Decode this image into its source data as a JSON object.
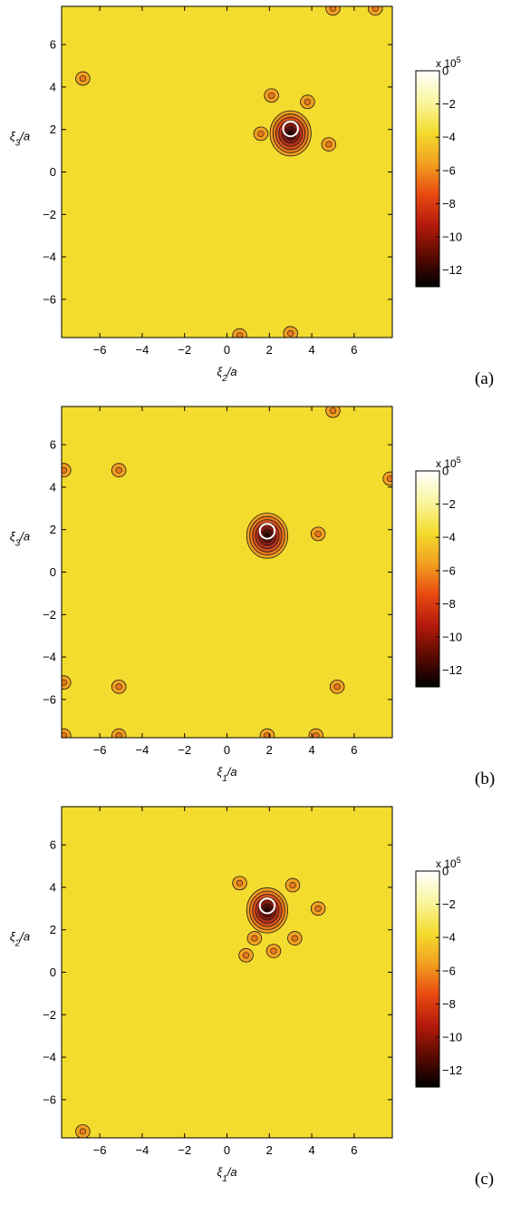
{
  "chart_data": [
    {
      "type": "heatmap",
      "panel_label": "(a)",
      "xlabel": "ξ2/a",
      "ylabel": "ξ3/a",
      "xlim": [
        -7.8,
        7.8
      ],
      "ylim": [
        -7.8,
        7.8
      ],
      "xticks": [
        "−6",
        "−4",
        "−2",
        "0",
        "2",
        "4",
        "6"
      ],
      "yticks": [
        "6",
        "4",
        "2",
        "0",
        "−2",
        "−4",
        "−6"
      ],
      "colorbar": {
        "exponent_label": "x 10",
        "exponent_power": "5",
        "range": [
          -13,
          0
        ],
        "ticks": [
          "0",
          "−2",
          "−4",
          "−6",
          "−8",
          "−10",
          "−12"
        ],
        "colormap": [
          "#000000",
          "#5a0a00",
          "#b41a0c",
          "#e84a10",
          "#f2a020",
          "#f4dc2e",
          "#fbf6a0",
          "#ffffff"
        ]
      },
      "background_value": -3.5,
      "features": [
        {
          "kind": "well",
          "x": 3.0,
          "y": 1.9,
          "min_value": -12.5,
          "note": "deep well with white circle marker at centre"
        },
        {
          "kind": "lobe",
          "x": 1.6,
          "y": 1.8,
          "value": -5
        },
        {
          "kind": "lobe",
          "x": 3.8,
          "y": 3.3,
          "value": -5
        },
        {
          "kind": "lobe",
          "x": 2.1,
          "y": 3.6,
          "value": -5
        },
        {
          "kind": "lobe",
          "x": 4.8,
          "y": 1.3,
          "value": -5
        },
        {
          "kind": "lobe",
          "x": -6.8,
          "y": 4.4,
          "value": -5
        },
        {
          "kind": "lobe",
          "x": 0.6,
          "y": -7.7,
          "value": -5
        },
        {
          "kind": "lobe",
          "x": 3.0,
          "y": -7.6,
          "value": -5
        },
        {
          "kind": "lobe",
          "x": 5.0,
          "y": 7.7,
          "value": -5
        },
        {
          "kind": "lobe",
          "x": 7.0,
          "y": 7.7,
          "value": -5
        }
      ]
    },
    {
      "type": "heatmap",
      "panel_label": "(b)",
      "xlabel": "ξ1/a",
      "ylabel": "ξ3/a",
      "xlim": [
        -7.8,
        7.8
      ],
      "ylim": [
        -7.8,
        7.8
      ],
      "xticks": [
        "−6",
        "−4",
        "−2",
        "0",
        "2",
        "4",
        "6"
      ],
      "yticks": [
        "6",
        "4",
        "2",
        "0",
        "−2",
        "−4",
        "−6"
      ],
      "colorbar": {
        "exponent_label": "x 10",
        "exponent_power": "5",
        "range": [
          -13,
          0
        ],
        "ticks": [
          "0",
          "−2",
          "−4",
          "−6",
          "−8",
          "−10",
          "−12"
        ],
        "colormap": [
          "#000000",
          "#5a0a00",
          "#b41a0c",
          "#e84a10",
          "#f2a020",
          "#f4dc2e",
          "#fbf6a0",
          "#ffffff"
        ]
      },
      "background_value": -3.5,
      "features": [
        {
          "kind": "well",
          "x": 1.9,
          "y": 1.8,
          "min_value": -12.5,
          "note": "deep well with white circle marker at centre"
        },
        {
          "kind": "lobe",
          "x": 4.3,
          "y": 1.8,
          "value": -5
        },
        {
          "kind": "lobe",
          "x": -5.1,
          "y": 4.8,
          "value": -5
        },
        {
          "kind": "lobe",
          "x": -7.7,
          "y": 4.8,
          "value": -5
        },
        {
          "kind": "lobe",
          "x": 7.7,
          "y": 4.4,
          "value": -5
        },
        {
          "kind": "lobe",
          "x": 5.0,
          "y": 7.6,
          "value": -5
        },
        {
          "kind": "lobe",
          "x": -5.1,
          "y": -5.4,
          "value": -5
        },
        {
          "kind": "lobe",
          "x": 5.2,
          "y": -5.4,
          "value": -5
        },
        {
          "kind": "lobe",
          "x": -7.7,
          "y": -5.2,
          "value": -5
        },
        {
          "kind": "lobe",
          "x": 1.9,
          "y": -7.7,
          "value": -5
        },
        {
          "kind": "lobe",
          "x": 4.2,
          "y": -7.7,
          "value": -5
        },
        {
          "kind": "lobe",
          "x": -7.7,
          "y": -7.7,
          "value": -5
        },
        {
          "kind": "lobe",
          "x": -5.1,
          "y": -7.7,
          "value": -5
        }
      ]
    },
    {
      "type": "heatmap",
      "panel_label": "(c)",
      "xlabel": "ξ1/a",
      "ylabel": "ξ2/a",
      "xlim": [
        -7.8,
        7.8
      ],
      "ylim": [
        -7.8,
        7.8
      ],
      "xticks": [
        "−6",
        "−4",
        "−2",
        "0",
        "2",
        "4",
        "6"
      ],
      "yticks": [
        "6",
        "4",
        "2",
        "0",
        "−2",
        "−4",
        "−6"
      ],
      "colorbar": {
        "exponent_label": "x 10",
        "exponent_power": "5",
        "range": [
          -13,
          0
        ],
        "ticks": [
          "0",
          "−2",
          "−4",
          "−6",
          "−8",
          "−10",
          "−12"
        ],
        "colormap": [
          "#000000",
          "#5a0a00",
          "#b41a0c",
          "#e84a10",
          "#f2a020",
          "#f4dc2e",
          "#fbf6a0",
          "#ffffff"
        ]
      },
      "background_value": -3.5,
      "features": [
        {
          "kind": "well",
          "x": 1.9,
          "y": 3.0,
          "min_value": -12.5,
          "note": "deep well with white circle marker at centre"
        },
        {
          "kind": "lobe",
          "x": 0.6,
          "y": 4.2,
          "value": -5
        },
        {
          "kind": "lobe",
          "x": 3.1,
          "y": 4.1,
          "value": -5
        },
        {
          "kind": "lobe",
          "x": 4.3,
          "y": 3.0,
          "value": -5
        },
        {
          "kind": "lobe",
          "x": 1.3,
          "y": 1.6,
          "value": -5
        },
        {
          "kind": "lobe",
          "x": 3.2,
          "y": 1.6,
          "value": -5
        },
        {
          "kind": "lobe",
          "x": 2.2,
          "y": 1.0,
          "value": -5
        },
        {
          "kind": "lobe",
          "x": 0.9,
          "y": 0.8,
          "value": -5
        },
        {
          "kind": "lobe",
          "x": -6.8,
          "y": -7.5,
          "value": -5
        }
      ]
    }
  ],
  "colors": {
    "background": "#f4dc2e",
    "lobe_fill": "#f2a020",
    "contour": "#1a1a1a",
    "marker": "#ffffff"
  }
}
